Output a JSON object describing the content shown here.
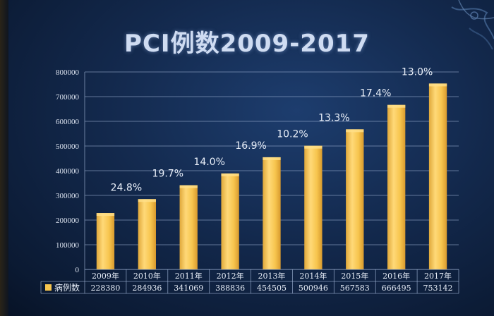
{
  "colors": {
    "bar": "#f7c54e",
    "bar_highlight": "#ffe08a",
    "grid": "#9fb3d4",
    "text": "#e6ecf6"
  },
  "chart_data": {
    "type": "bar",
    "title": "PCI例数2009-2017",
    "categories": [
      "2009年",
      "2010年",
      "2011年",
      "2012年",
      "2013年",
      "2014年",
      "2015年",
      "2016年",
      "2017年"
    ],
    "series": [
      {
        "name": "病例数",
        "values": [
          228380,
          284936,
          341069,
          388836,
          454505,
          500946,
          567583,
          666495,
          753142
        ]
      }
    ],
    "growth_labels": [
      "24.8%",
      "19.7%",
      "14.0%",
      "16.9%",
      "10.2%",
      "13.3%",
      "17.4%",
      "13.0%"
    ],
    "ylim": [
      0,
      800000
    ],
    "yticks": [
      0,
      100000,
      200000,
      300000,
      400000,
      500000,
      600000,
      700000,
      800000
    ],
    "grid": true,
    "legend": "data-table-left"
  }
}
